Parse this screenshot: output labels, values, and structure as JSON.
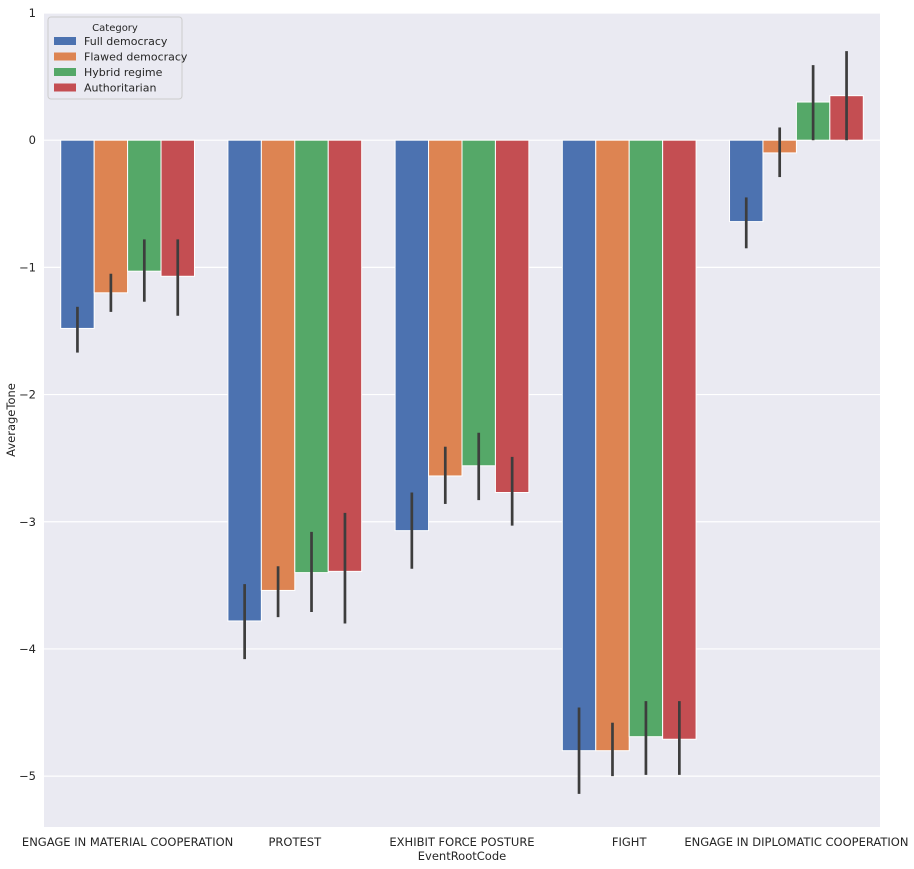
{
  "chart_data": {
    "type": "bar",
    "title": "",
    "xlabel": "EventRootCode",
    "ylabel": "AverageTone",
    "ylim": [
      -5.4,
      1.0
    ],
    "yticks": [
      -5,
      -4,
      -3,
      -2,
      -1,
      0,
      1
    ],
    "ytick_labels": [
      "−5",
      "−4",
      "−3",
      "−2",
      "−1",
      "0",
      "1"
    ],
    "grid": true,
    "legend": {
      "title": "Category",
      "placement": "top-left"
    },
    "categories": [
      "ENGAGE IN MATERIAL COOPERATION",
      "PROTEST",
      "EXHIBIT FORCE POSTURE",
      "FIGHT",
      "ENGAGE IN DIPLOMATIC COOPERATION"
    ],
    "series": [
      {
        "name": "Full democracy",
        "color": "#4c72b0",
        "values": [
          -1.48,
          -3.78,
          -3.07,
          -4.8,
          -0.64
        ],
        "ci_low": [
          -1.67,
          -4.08,
          -3.37,
          -5.14,
          -0.85
        ],
        "ci_high": [
          -1.31,
          -3.49,
          -2.77,
          -4.46,
          -0.45
        ]
      },
      {
        "name": "Flawed democracy",
        "color": "#dd8452",
        "values": [
          -1.2,
          -3.54,
          -2.64,
          -4.8,
          -0.1
        ],
        "ci_low": [
          -1.35,
          -3.75,
          -2.86,
          -5.0,
          -0.29
        ],
        "ci_high": [
          -1.05,
          -3.35,
          -2.41,
          -4.58,
          0.1
        ]
      },
      {
        "name": "Hybrid regime",
        "color": "#55a868",
        "values": [
          -1.03,
          -3.4,
          -2.56,
          -4.69,
          0.3
        ],
        "ci_low": [
          -1.27,
          -3.71,
          -2.83,
          -4.99,
          0.0
        ],
        "ci_high": [
          -0.78,
          -3.08,
          -2.3,
          -4.41,
          0.59
        ]
      },
      {
        "name": "Authoritarian",
        "color": "#c44e52",
        "values": [
          -1.07,
          -3.39,
          -2.77,
          -4.71,
          0.35
        ],
        "ci_low": [
          -1.38,
          -3.8,
          -3.03,
          -4.99,
          0.0
        ],
        "ci_high": [
          -0.78,
          -2.93,
          -2.49,
          -4.41,
          0.7
        ]
      }
    ]
  }
}
